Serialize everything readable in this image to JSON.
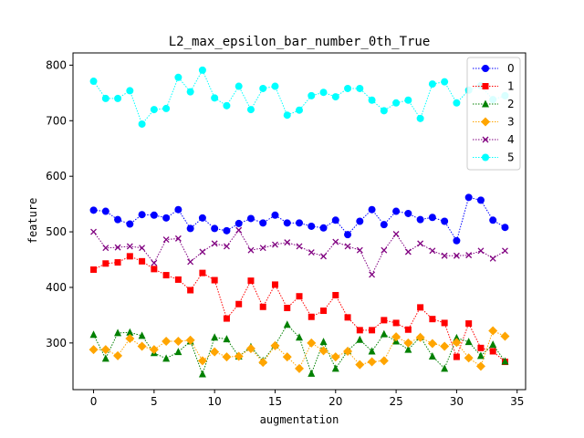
{
  "chart_data": {
    "type": "line",
    "title": "L2_max_epsilon_bar_number_0th_True",
    "xlabel": "augmentation",
    "ylabel": "feature",
    "xlim": [
      -1.7,
      35.7
    ],
    "ylim": [
      216,
      822
    ],
    "xticks": [
      0,
      5,
      10,
      15,
      20,
      25,
      30,
      35
    ],
    "yticks": [
      300,
      400,
      500,
      600,
      700,
      800
    ],
    "legend_position": "upper-right",
    "grid": false,
    "x": [
      0,
      1,
      2,
      3,
      4,
      5,
      6,
      7,
      8,
      9,
      10,
      11,
      12,
      13,
      14,
      15,
      16,
      17,
      18,
      19,
      20,
      21,
      22,
      23,
      24,
      25,
      26,
      27,
      28,
      29,
      30,
      31,
      32,
      33,
      34
    ],
    "series": [
      {
        "name": "0",
        "color": "#0000ff",
        "marker": "circle",
        "values": [
          539,
          537,
          522,
          514,
          531,
          530,
          525,
          540,
          506,
          525,
          506,
          502,
          515,
          524,
          516,
          530,
          516,
          516,
          510,
          507,
          521,
          495,
          519,
          540,
          513,
          537,
          533,
          522,
          526,
          519,
          484,
          562,
          557,
          521,
          508
        ]
      },
      {
        "name": "1",
        "color": "#ff0000",
        "marker": "square",
        "values": [
          432,
          443,
          445,
          456,
          447,
          433,
          422,
          414,
          395,
          426,
          413,
          344,
          370,
          412,
          365,
          405,
          363,
          384,
          347,
          358,
          386,
          346,
          323,
          323,
          341,
          336,
          324,
          364,
          343,
          336,
          275,
          335,
          291,
          285,
          266
        ]
      },
      {
        "name": "2",
        "color": "#008000",
        "marker": "triangle",
        "values": [
          315,
          272,
          318,
          319,
          313,
          282,
          272,
          284,
          303,
          244,
          310,
          307,
          276,
          293,
          268,
          296,
          333,
          310,
          245,
          302,
          254,
          286,
          306,
          285,
          316,
          303,
          288,
          311,
          276,
          254,
          309,
          302,
          277,
          297,
          267
        ]
      },
      {
        "name": "3",
        "color": "#ffa500",
        "marker": "diamond",
        "values": [
          288,
          288,
          277,
          308,
          294,
          288,
          303,
          303,
          305,
          268,
          284,
          275,
          276,
          290,
          265,
          295,
          275,
          254,
          300,
          286,
          275,
          285,
          261,
          266,
          268,
          311,
          300,
          310,
          299,
          294,
          301,
          273,
          258,
          322,
          312
        ]
      },
      {
        "name": "4",
        "color": "#800080",
        "marker": "x",
        "values": [
          500,
          471,
          472,
          474,
          471,
          444,
          486,
          488,
          446,
          464,
          479,
          474,
          503,
          467,
          471,
          477,
          481,
          474,
          463,
          456,
          482,
          474,
          467,
          423,
          467,
          496,
          464,
          479,
          466,
          457,
          457,
          458,
          466,
          452,
          466
        ]
      },
      {
        "name": "5",
        "color": "#00ffff",
        "marker": "circle",
        "values": [
          771,
          740,
          740,
          754,
          694,
          720,
          722,
          778,
          752,
          791,
          741,
          727,
          762,
          720,
          758,
          762,
          710,
          719,
          745,
          751,
          743,
          758,
          758,
          737,
          718,
          732,
          737,
          704,
          766,
          770,
          732,
          755,
          763,
          738,
          745
        ]
      }
    ]
  }
}
